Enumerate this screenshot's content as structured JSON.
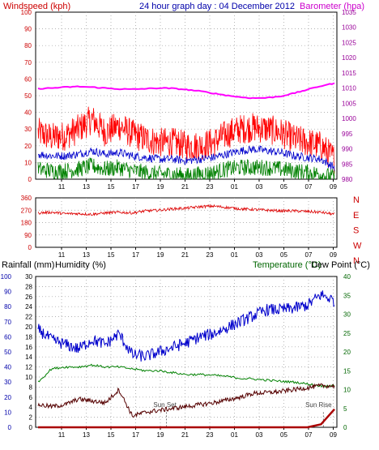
{
  "header": {
    "top_title": "24 hour graph day : 04 December 2012",
    "windspeed_label": "Windspeed (kph)",
    "barometer_label": "Barometer (hpa)",
    "rainfall_label": "Rainfall (mm)",
    "humidity_label": "Humidity (%)",
    "temperature_label": "Temperature (°C)",
    "dewpoint_label": "Dew Point (°C)"
  },
  "annotations": {
    "sunset": "Sun Set",
    "sunrise": "Sun Rise"
  },
  "colors": {
    "wind_gust": "#ff0000",
    "wind_avg": "#0000cc",
    "wind_min": "#008000",
    "barometer": "#ff00ff",
    "direction": "#dd0000",
    "temperature": "#0000cc",
    "humidity": "#008000",
    "dewpoint": "#550000",
    "rainfall": "#aa0000",
    "axis_left": "#cc0000",
    "axis_right": "#990099",
    "axis_green": "#006600",
    "axis_blue": "#0000aa"
  },
  "chart_data": [
    {
      "id": "wind",
      "type": "line",
      "title": "24 hour graph day : 04 December 2012",
      "ylabel": "Windspeed (kph)",
      "ylim": [
        0,
        100
      ],
      "y_ticks": [
        0,
        10,
        20,
        30,
        40,
        50,
        60,
        70,
        80,
        90,
        100
      ],
      "y2label": "Barometer (hpa)",
      "y2lim": [
        980,
        1035
      ],
      "y2_ticks": [
        980,
        985,
        990,
        995,
        1000,
        1005,
        1010,
        1015,
        1020,
        1025,
        1030,
        1035
      ],
      "x_ticks": [
        "11",
        "13",
        "15",
        "17",
        "19",
        "21",
        "23",
        "01",
        "03",
        "05",
        "07",
        "09"
      ],
      "grid": true,
      "series": [
        {
          "id": "gust",
          "x": [
            "11",
            "12",
            "13",
            "14",
            "15",
            "16",
            "17",
            "18",
            "19",
            "20",
            "21",
            "22",
            "23",
            "00",
            "01",
            "02",
            "03",
            "04",
            "05",
            "06",
            "07",
            "08",
            "09"
          ],
          "values": [
            28,
            25,
            26,
            30,
            36,
            28,
            32,
            27,
            24,
            22,
            22,
            20,
            20,
            22,
            27,
            30,
            31,
            30,
            28,
            24,
            22,
            20,
            12
          ]
        },
        {
          "id": "average",
          "x": [
            "11",
            "12",
            "13",
            "14",
            "15",
            "16",
            "17",
            "18",
            "19",
            "20",
            "21",
            "22",
            "23",
            "00",
            "01",
            "02",
            "03",
            "04",
            "05",
            "06",
            "07",
            "08",
            "09"
          ],
          "values": [
            15,
            14,
            14,
            15,
            17,
            15,
            16,
            14,
            13,
            12,
            12,
            11,
            12,
            13,
            15,
            17,
            18,
            17,
            16,
            14,
            13,
            12,
            7
          ]
        },
        {
          "id": "minimum",
          "x": [
            "11",
            "12",
            "13",
            "14",
            "15",
            "16",
            "17",
            "18",
            "19",
            "20",
            "21",
            "22",
            "23",
            "00",
            "01",
            "02",
            "03",
            "04",
            "05",
            "06",
            "07",
            "08",
            "09"
          ],
          "values": [
            6,
            5,
            5,
            6,
            8,
            6,
            7,
            5,
            4,
            3,
            3,
            2,
            3,
            4,
            6,
            7,
            7,
            7,
            6,
            5,
            4,
            3,
            1
          ]
        },
        {
          "id": "barometer",
          "axis": "y2",
          "x": [
            "11",
            "12",
            "13",
            "14",
            "15",
            "16",
            "17",
            "18",
            "19",
            "20",
            "21",
            "22",
            "23",
            "00",
            "01",
            "02",
            "03",
            "04",
            "05",
            "06",
            "07",
            "08",
            "09"
          ],
          "values": [
            1009.8,
            1010.0,
            1010.3,
            1010.5,
            1010.3,
            1010.0,
            1009.7,
            1009.6,
            1009.8,
            1010.0,
            1009.9,
            1009.5,
            1009.0,
            1008.3,
            1007.6,
            1007.0,
            1006.7,
            1006.8,
            1007.3,
            1008.3,
            1009.5,
            1010.7,
            1011.6
          ]
        }
      ]
    },
    {
      "id": "direction",
      "type": "line",
      "ylim": [
        0,
        360
      ],
      "y_ticks": [
        0,
        90,
        180,
        270,
        360
      ],
      "direction_labels": [
        "N",
        "W",
        "S",
        "E",
        "N"
      ],
      "x_ticks": [
        "11",
        "13",
        "15",
        "17",
        "19",
        "21",
        "23",
        "01",
        "03",
        "05",
        "07",
        "09"
      ],
      "grid": true,
      "series": [
        {
          "id": "wind_direction",
          "x": [
            "11",
            "12",
            "13",
            "14",
            "15",
            "16",
            "17",
            "18",
            "19",
            "20",
            "21",
            "22",
            "23",
            "00",
            "01",
            "02",
            "03",
            "04",
            "05",
            "06",
            "07",
            "08",
            "09"
          ],
          "values": [
            250,
            255,
            245,
            245,
            240,
            250,
            255,
            250,
            265,
            270,
            280,
            285,
            295,
            300,
            290,
            280,
            275,
            270,
            265,
            265,
            260,
            255,
            240
          ]
        }
      ]
    },
    {
      "id": "temp_humidity_rain",
      "type": "line",
      "ylabel_left_outer": "Rainfall (mm)",
      "ylim_left_outer": [
        0,
        30
      ],
      "y_ticks_left_outer": [
        0,
        2,
        4,
        6,
        8,
        10,
        12,
        14,
        16,
        18,
        20,
        22,
        24,
        26,
        28,
        30
      ],
      "ylabel_left_inner": "Humidity (%)",
      "ylim_left_inner": [
        0,
        100
      ],
      "y_ticks_left_inner": [
        0,
        10,
        20,
        30,
        40,
        50,
        60,
        70,
        80,
        90,
        100
      ],
      "ylabel_right": "Temperature (°C) / Dew Point (°C)",
      "ylim_right": [
        0,
        40
      ],
      "y_ticks_right": [
        0,
        5,
        10,
        15,
        20,
        25,
        30,
        35,
        40
      ],
      "x_ticks": [
        "11",
        "13",
        "15",
        "17",
        "19",
        "21",
        "23",
        "01",
        "03",
        "05",
        "07",
        "09"
      ],
      "grid": true,
      "series": [
        {
          "id": "humidity",
          "axis": "left_inner",
          "x": [
            "11",
            "12",
            "13",
            "14",
            "15",
            "16",
            "17",
            "18",
            "19",
            "20",
            "21",
            "22",
            "23",
            "00",
            "01",
            "02",
            "03",
            "04",
            "05",
            "06",
            "07",
            "08",
            "09"
          ],
          "values": [
            65,
            58,
            55,
            52,
            58,
            55,
            62,
            48,
            47,
            50,
            53,
            56,
            60,
            62,
            66,
            70,
            74,
            78,
            78,
            79,
            81,
            88,
            84
          ]
        },
        {
          "id": "temperature",
          "axis": "right",
          "x": [
            "11",
            "12",
            "13",
            "14",
            "15",
            "16",
            "17",
            "18",
            "19",
            "20",
            "21",
            "22",
            "23",
            "00",
            "01",
            "02",
            "03",
            "04",
            "05",
            "06",
            "07",
            "08",
            "09"
          ],
          "values": [
            12,
            15.5,
            16,
            16,
            16.5,
            16,
            16,
            15.5,
            15,
            15,
            14.5,
            14,
            14,
            13.8,
            13.5,
            13,
            12.8,
            12.5,
            12.2,
            12,
            11.5,
            11,
            11
          ]
        },
        {
          "id": "dewpoint",
          "axis": "right",
          "x": [
            "11",
            "12",
            "13",
            "14",
            "15",
            "16",
            "17",
            "18",
            "19",
            "20",
            "21",
            "22",
            "23",
            "00",
            "01",
            "02",
            "03",
            "04",
            "05",
            "06",
            "07",
            "08",
            "09"
          ],
          "values": [
            6,
            5.5,
            6,
            7.5,
            7,
            6.5,
            10,
            3,
            4,
            4.5,
            5,
            5.5,
            6,
            6.5,
            7.2,
            8,
            9,
            9.2,
            9.5,
            10,
            10.5,
            11,
            11
          ]
        },
        {
          "id": "rainfall",
          "axis": "left_outer",
          "x": [
            "11",
            "12",
            "13",
            "14",
            "15",
            "16",
            "17",
            "18",
            "19",
            "20",
            "21",
            "22",
            "23",
            "00",
            "01",
            "02",
            "03",
            "04",
            "05",
            "06",
            "07",
            "08",
            "09"
          ],
          "values": [
            0,
            0,
            0,
            0,
            0,
            0,
            0,
            0,
            0,
            0,
            0,
            0,
            0,
            0,
            0,
            0,
            0,
            0,
            0,
            0,
            0,
            0.6,
            3.6
          ]
        }
      ]
    }
  ]
}
